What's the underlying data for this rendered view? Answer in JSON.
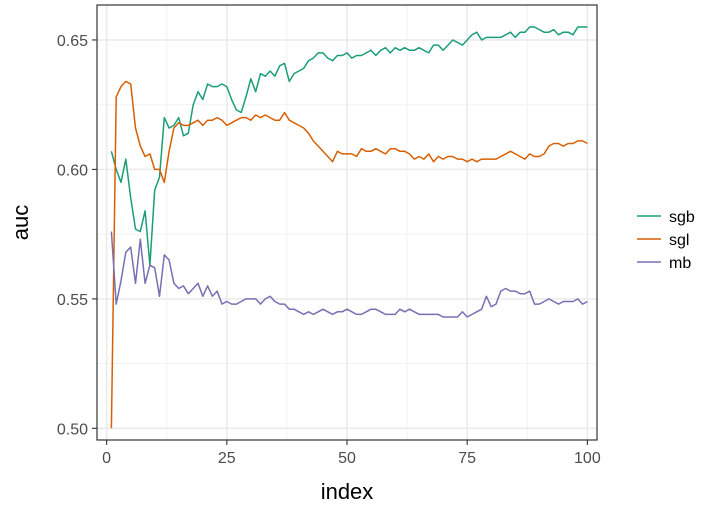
{
  "chart_data": {
    "type": "line",
    "xlabel": "index",
    "ylabel": "auc",
    "xlim": [
      -2,
      102
    ],
    "ylim": [
      0.4955,
      0.6635
    ],
    "xticks": [
      0,
      25,
      50,
      75,
      100
    ],
    "yticks": [
      0.5,
      0.55,
      0.6,
      0.65
    ],
    "ytick_labels": [
      "0.50",
      "0.55",
      "0.60",
      "0.65"
    ],
    "grid": true,
    "legend_position": "right",
    "x": [
      1,
      2,
      3,
      4,
      5,
      6,
      7,
      8,
      9,
      10,
      11,
      12,
      13,
      14,
      15,
      16,
      17,
      18,
      19,
      20,
      21,
      22,
      23,
      24,
      25,
      26,
      27,
      28,
      29,
      30,
      31,
      32,
      33,
      34,
      35,
      36,
      37,
      38,
      39,
      40,
      41,
      42,
      43,
      44,
      45,
      46,
      47,
      48,
      49,
      50,
      51,
      52,
      53,
      54,
      55,
      56,
      57,
      58,
      59,
      60,
      61,
      62,
      63,
      64,
      65,
      66,
      67,
      68,
      69,
      70,
      71,
      72,
      73,
      74,
      75,
      76,
      77,
      78,
      79,
      80,
      81,
      82,
      83,
      84,
      85,
      86,
      87,
      88,
      89,
      90,
      91,
      92,
      93,
      94,
      95,
      96,
      97,
      98,
      99,
      100
    ],
    "series": [
      {
        "name": "sgb",
        "color": "#1b9e77",
        "values": [
          0.607,
          0.6,
          0.595,
          0.604,
          0.589,
          0.577,
          0.576,
          0.584,
          0.563,
          0.592,
          0.597,
          0.62,
          0.616,
          0.617,
          0.62,
          0.613,
          0.614,
          0.625,
          0.63,
          0.627,
          0.633,
          0.632,
          0.632,
          0.633,
          0.632,
          0.627,
          0.623,
          0.622,
          0.628,
          0.635,
          0.63,
          0.637,
          0.636,
          0.638,
          0.636,
          0.64,
          0.641,
          0.634,
          0.637,
          0.638,
          0.639,
          0.642,
          0.643,
          0.645,
          0.645,
          0.643,
          0.642,
          0.644,
          0.644,
          0.645,
          0.643,
          0.644,
          0.644,
          0.645,
          0.646,
          0.644,
          0.646,
          0.647,
          0.645,
          0.647,
          0.646,
          0.647,
          0.646,
          0.646,
          0.647,
          0.646,
          0.645,
          0.648,
          0.648,
          0.646,
          0.648,
          0.65,
          0.649,
          0.648,
          0.65,
          0.652,
          0.653,
          0.65,
          0.651,
          0.651,
          0.651,
          0.651,
          0.652,
          0.653,
          0.651,
          0.653,
          0.653,
          0.655,
          0.655,
          0.654,
          0.653,
          0.653,
          0.654,
          0.652,
          0.653,
          0.653,
          0.652,
          0.655,
          0.655,
          0.655
        ]
      },
      {
        "name": "sgl",
        "color": "#d95f02",
        "values": [
          0.5,
          0.628,
          0.632,
          0.634,
          0.633,
          0.616,
          0.609,
          0.605,
          0.606,
          0.6,
          0.6,
          0.595,
          0.607,
          0.616,
          0.618,
          0.617,
          0.617,
          0.618,
          0.619,
          0.617,
          0.619,
          0.619,
          0.62,
          0.619,
          0.617,
          0.618,
          0.619,
          0.62,
          0.62,
          0.619,
          0.621,
          0.62,
          0.621,
          0.62,
          0.619,
          0.619,
          0.622,
          0.619,
          0.618,
          0.617,
          0.616,
          0.614,
          0.611,
          0.609,
          0.607,
          0.605,
          0.603,
          0.607,
          0.606,
          0.606,
          0.606,
          0.605,
          0.608,
          0.607,
          0.607,
          0.608,
          0.607,
          0.606,
          0.608,
          0.608,
          0.607,
          0.607,
          0.606,
          0.604,
          0.605,
          0.604,
          0.606,
          0.603,
          0.605,
          0.604,
          0.605,
          0.605,
          0.604,
          0.604,
          0.603,
          0.604,
          0.603,
          0.604,
          0.604,
          0.604,
          0.604,
          0.605,
          0.606,
          0.607,
          0.606,
          0.605,
          0.604,
          0.606,
          0.605,
          0.605,
          0.606,
          0.609,
          0.61,
          0.61,
          0.609,
          0.61,
          0.61,
          0.611,
          0.611,
          0.61
        ]
      },
      {
        "name": "mb",
        "color": "#7570b3",
        "values": [
          0.576,
          0.548,
          0.557,
          0.568,
          0.57,
          0.556,
          0.573,
          0.556,
          0.563,
          0.562,
          0.551,
          0.567,
          0.565,
          0.556,
          0.554,
          0.555,
          0.552,
          0.554,
          0.556,
          0.551,
          0.555,
          0.551,
          0.553,
          0.548,
          0.549,
          0.548,
          0.548,
          0.549,
          0.55,
          0.55,
          0.55,
          0.548,
          0.55,
          0.551,
          0.549,
          0.548,
          0.548,
          0.546,
          0.546,
          0.545,
          0.544,
          0.545,
          0.544,
          0.545,
          0.546,
          0.545,
          0.544,
          0.545,
          0.545,
          0.546,
          0.545,
          0.544,
          0.544,
          0.545,
          0.546,
          0.546,
          0.545,
          0.544,
          0.544,
          0.544,
          0.546,
          0.545,
          0.546,
          0.545,
          0.544,
          0.544,
          0.544,
          0.544,
          0.544,
          0.543,
          0.543,
          0.543,
          0.543,
          0.545,
          0.543,
          0.544,
          0.545,
          0.546,
          0.551,
          0.547,
          0.548,
          0.553,
          0.554,
          0.553,
          0.553,
          0.552,
          0.552,
          0.553,
          0.548,
          0.548,
          0.549,
          0.55,
          0.549,
          0.548,
          0.549,
          0.549,
          0.549,
          0.55,
          0.548,
          0.549
        ]
      }
    ]
  }
}
